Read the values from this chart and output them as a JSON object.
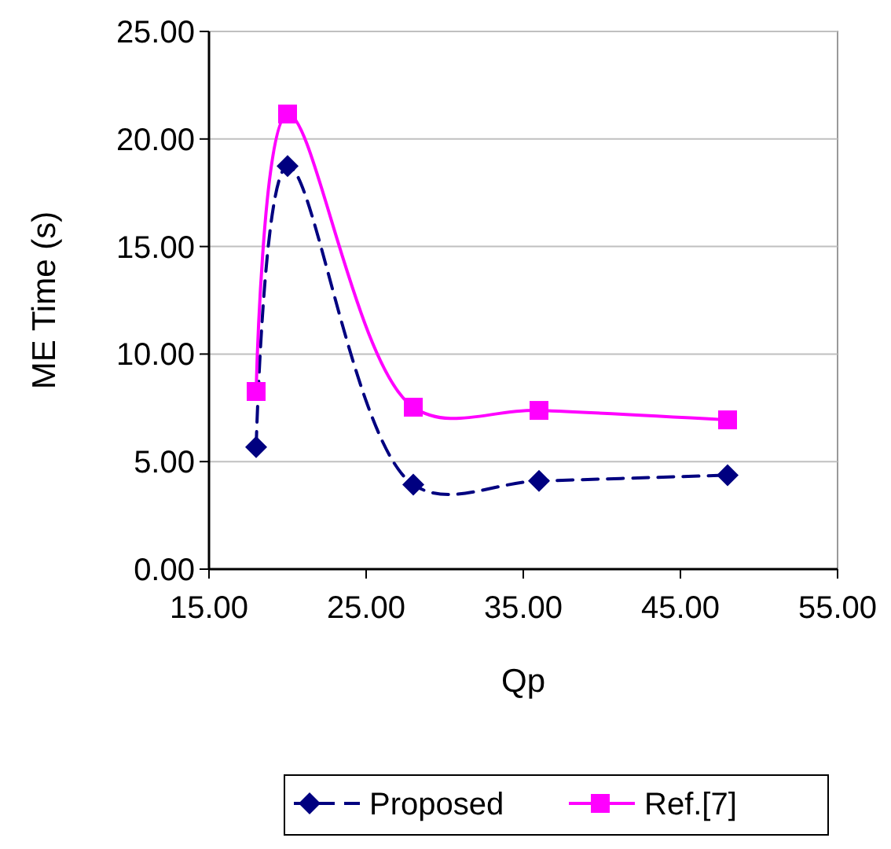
{
  "chart_data": {
    "type": "line",
    "xlabel": "Qp",
    "ylabel": "ME Time (s)",
    "xlim": [
      15,
      55
    ],
    "xticks": [
      {
        "value": 15,
        "label": "15.00"
      },
      {
        "value": 25,
        "label": "25.00"
      },
      {
        "value": 35,
        "label": "35.00"
      },
      {
        "value": 45,
        "label": "45.00"
      },
      {
        "value": 55,
        "label": "55.00"
      }
    ],
    "ylim": [
      0,
      25
    ],
    "yticks": [
      {
        "value": 0,
        "label": "0.00"
      },
      {
        "value": 5,
        "label": "5.00"
      },
      {
        "value": 10,
        "label": "10.00"
      },
      {
        "value": 15,
        "label": "15.00"
      },
      {
        "value": 20,
        "label": "20.00"
      },
      {
        "value": 25,
        "label": "25.00"
      }
    ],
    "grid": "y",
    "legend": "bottom",
    "series": [
      {
        "name": "Proposed",
        "color": "#000080",
        "x": [
          18,
          20,
          28,
          36,
          48
        ],
        "values": [
          5.67,
          18.74,
          3.93,
          4.1,
          4.37
        ],
        "marker": "diamond",
        "line_style": "dashed"
      },
      {
        "name": "Ref.[7]",
        "color": "#ff00ff",
        "x": [
          18,
          20,
          28,
          36,
          48
        ],
        "values": [
          8.26,
          21.16,
          7.53,
          7.38,
          6.94
        ],
        "marker": "square",
        "line_style": "solid"
      }
    ]
  }
}
